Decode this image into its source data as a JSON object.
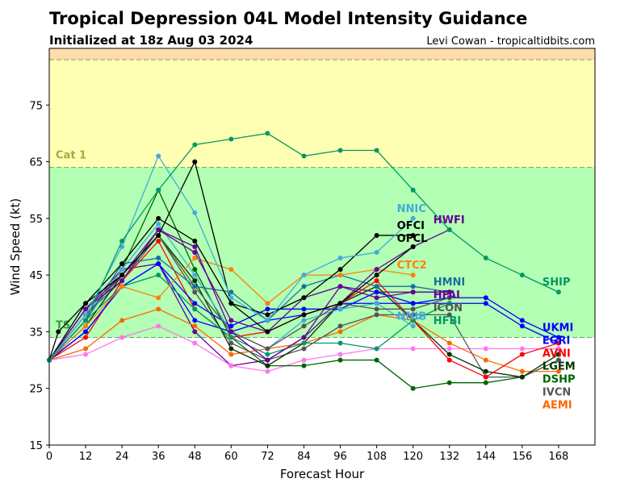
{
  "chart_data": {
    "type": "line",
    "title": "Tropical Depression 04L Model Intensity Guidance",
    "subtitle": "Initialized at 18z Aug 03 2024",
    "credit": "Levi Cowan - tropicaltidbits.com",
    "xlabel": "Forecast Hour",
    "ylabel": "Wind Speed (kt)",
    "xlim": [
      0,
      180
    ],
    "ylim": [
      15,
      85
    ],
    "xticks": [
      0,
      12,
      24,
      36,
      48,
      60,
      72,
      84,
      96,
      108,
      120,
      132,
      144,
      156,
      168
    ],
    "yticks": [
      15,
      25,
      35,
      45,
      55,
      65,
      75
    ],
    "bands": [
      {
        "name": "TS",
        "from": 34,
        "to": 64,
        "color": "#b3ffb3",
        "label_color": "#3a9a3a"
      },
      {
        "name": "Cat 1",
        "from": 64,
        "to": 83,
        "color": "#ffffb3",
        "label_color": "#a8a840"
      },
      {
        "name": "",
        "from": 83,
        "to": 85,
        "color": "#ffdcaa",
        "label_color": "#a8a840"
      }
    ],
    "series": [
      {
        "name": "SHIP",
        "color": "#009966",
        "x": [
          0,
          12,
          24,
          36,
          48,
          60,
          72,
          84,
          96,
          108,
          120,
          132,
          144,
          156,
          168
        ],
        "y": [
          30,
          37,
          51,
          60,
          68,
          69,
          70,
          66,
          67,
          67,
          60,
          53,
          48,
          45,
          42
        ]
      },
      {
        "name": "NNIC",
        "color": "#44aadd",
        "x": [
          0,
          12,
          24,
          36,
          48,
          60,
          72,
          84,
          96,
          108,
          120
        ],
        "y": [
          30,
          38,
          50,
          66,
          56,
          41,
          37,
          45,
          48,
          49,
          55
        ]
      },
      {
        "name": "OFCI",
        "color": "#000000",
        "x": [
          0,
          12,
          24,
          36,
          48,
          60,
          72,
          84,
          96,
          108,
          120
        ],
        "y": [
          30,
          40,
          47,
          55,
          51,
          40,
          38,
          41,
          46,
          52,
          52
        ]
      },
      {
        "name": "OFCL",
        "color": "#000000",
        "x": [
          0,
          3,
          12,
          24,
          36,
          48,
          60,
          72,
          84,
          96,
          108,
          120
        ],
        "y": [
          30,
          35,
          40,
          45,
          52,
          65,
          40,
          35,
          38,
          40,
          45,
          50
        ]
      },
      {
        "name": "HWFI",
        "color": "#660099",
        "x": [
          0,
          12,
          24,
          36,
          48,
          60,
          72,
          84,
          96,
          108,
          120,
          132
        ],
        "y": [
          30,
          39,
          45,
          53,
          50,
          35,
          30,
          34,
          40,
          46,
          50,
          53
        ]
      },
      {
        "name": "CTC2",
        "color": "#ff7f0e",
        "x": [
          0,
          12,
          24,
          36,
          48,
          60,
          72,
          84,
          96,
          108,
          120
        ],
        "y": [
          30,
          36,
          43,
          41,
          48,
          46,
          40,
          45,
          45,
          46,
          45
        ]
      },
      {
        "name": "HFAI",
        "color": "#660099",
        "x": [
          0,
          12,
          24,
          36,
          48,
          60,
          72,
          84,
          96,
          108,
          120,
          132
        ],
        "y": [
          30,
          39,
          44,
          53,
          49,
          37,
          35,
          41,
          43,
          41,
          42,
          42
        ]
      },
      {
        "name": "HMNI",
        "color": "#1a6fa0",
        "x": [
          0,
          12,
          24,
          36,
          48,
          60,
          72,
          84,
          96,
          108,
          120,
          132
        ],
        "y": [
          30,
          37,
          47,
          48,
          43,
          42,
          37,
          43,
          45,
          43,
          43,
          42
        ]
      },
      {
        "name": "HFBI",
        "color": "#009966",
        "x": [
          0,
          12,
          24,
          36,
          48,
          60,
          72,
          84,
          96,
          108,
          120,
          132
        ],
        "y": [
          30,
          37,
          43,
          45,
          39,
          34,
          31,
          33,
          33,
          32,
          37,
          40
        ]
      },
      {
        "name": "ICON",
        "color": "#555555",
        "x": [
          0,
          12,
          24,
          36,
          48,
          60,
          72,
          84,
          96,
          108,
          120,
          132
        ],
        "y": [
          30,
          38,
          45,
          52,
          43,
          35,
          32,
          36,
          40,
          39,
          39,
          41
        ]
      },
      {
        "name": "NNIB",
        "color": "#44aadd",
        "x": [
          0,
          12,
          24,
          36,
          48,
          60,
          72,
          84,
          96,
          108,
          120
        ],
        "y": [
          30,
          37,
          46,
          54,
          45,
          35,
          32,
          37,
          39,
          40,
          36
        ]
      },
      {
        "name": "UKMI",
        "color": "#0000ff",
        "x": [
          0,
          12,
          24,
          36,
          48,
          60,
          72,
          84,
          96,
          108,
          120,
          132,
          144,
          156,
          168
        ],
        "y": [
          30,
          35,
          43,
          47,
          40,
          36,
          39,
          39,
          39,
          42,
          40,
          41,
          41,
          37,
          34
        ]
      },
      {
        "name": "AVNI",
        "color": "#ff0000",
        "x": [
          0,
          12,
          24,
          36,
          48,
          60,
          72,
          84,
          96,
          108,
          120,
          132,
          144,
          156,
          168
        ],
        "y": [
          30,
          34,
          44,
          51,
          39,
          34,
          35,
          38,
          40,
          44,
          37,
          30,
          27,
          31,
          33
        ]
      },
      {
        "name": "EGRI",
        "color": "#0000ff",
        "x": [
          0,
          12,
          24,
          36,
          48,
          60,
          72,
          84,
          96,
          108,
          120,
          132,
          144,
          156,
          168
        ],
        "y": [
          30,
          35,
          43,
          47,
          37,
          35,
          37,
          38,
          40,
          40,
          40,
          40,
          40,
          36,
          33
        ]
      },
      {
        "name": "LGEM",
        "color": "#003300",
        "x": [
          0,
          12,
          24,
          36,
          48,
          60,
          72,
          84,
          96,
          108,
          120,
          132,
          144,
          156,
          168
        ],
        "y": [
          30,
          36,
          45,
          52,
          44,
          32,
          29,
          33,
          40,
          43,
          37,
          31,
          28,
          27,
          31
        ]
      },
      {
        "name": "IVCN",
        "color": "#555555",
        "x": [
          0,
          12,
          24,
          36,
          48,
          60,
          72,
          84,
          96,
          108,
          120,
          132,
          144,
          156,
          168
        ],
        "y": [
          30,
          38,
          44,
          52,
          42,
          33,
          30,
          32,
          36,
          38,
          38,
          38,
          27,
          27,
          30
        ]
      },
      {
        "name": "DSHP",
        "color": "#006600",
        "x": [
          0,
          12,
          24,
          36,
          48,
          60,
          72,
          84,
          96,
          108,
          120,
          132,
          144,
          156,
          168
        ],
        "y": [
          30,
          37,
          46,
          60,
          46,
          34,
          29,
          29,
          30,
          30,
          25,
          26,
          26,
          27,
          30
        ]
      },
      {
        "name": "AEMI",
        "color": "#ff6600",
        "x": [
          0,
          12,
          24,
          36,
          48,
          60,
          72,
          84,
          96,
          108,
          120,
          132,
          144,
          156,
          168
        ],
        "y": [
          30,
          32,
          37,
          39,
          36,
          31,
          32,
          33,
          35,
          38,
          37,
          33,
          30,
          28,
          28
        ]
      },
      {
        "name": "",
        "color": "#ff77ee",
        "x": [
          0,
          12,
          24,
          36,
          48,
          60,
          72,
          84,
          96,
          108,
          120,
          132,
          144,
          156,
          168
        ],
        "y": [
          30,
          31,
          34,
          36,
          33,
          29,
          28,
          30,
          31,
          32,
          32,
          32,
          32,
          32,
          32
        ]
      },
      {
        "name": "",
        "color": "#660099",
        "x": [
          0,
          12,
          24,
          36,
          48,
          60,
          72,
          84,
          96,
          108,
          120,
          132
        ],
        "y": [
          30,
          39,
          46,
          47,
          35,
          29,
          30,
          34,
          43,
          42,
          42,
          42
        ]
      }
    ]
  }
}
